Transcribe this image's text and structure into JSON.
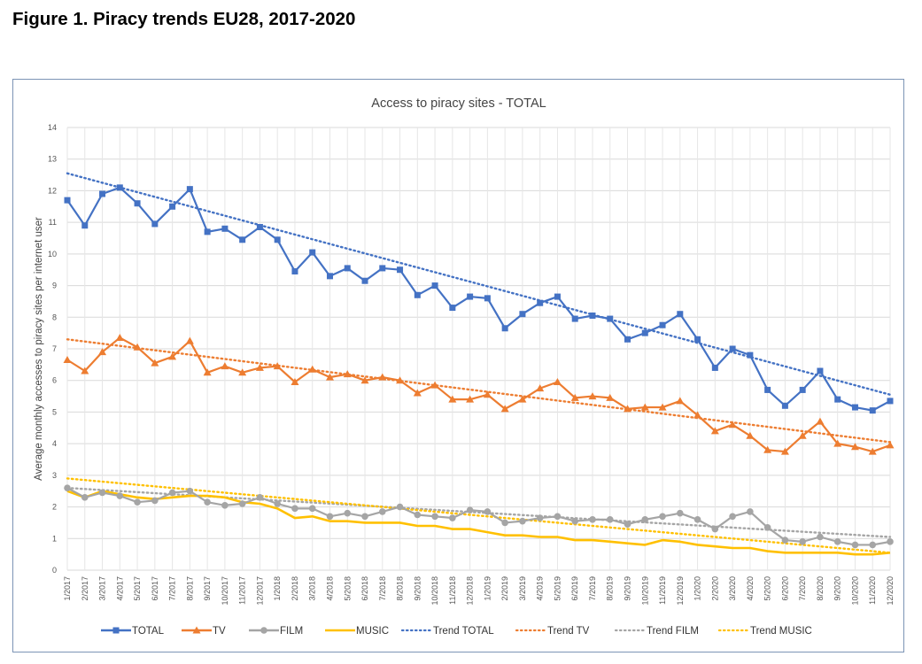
{
  "figure_title": "Figure 1. Piracy trends EU28, 2017-2020",
  "chart_data": {
    "type": "line",
    "title": "Access to piracy sites - TOTAL",
    "xlabel": "",
    "ylabel": "Average monthly accesses to piracy sites per internet user",
    "ylim": [
      0,
      14
    ],
    "yticks": [
      0,
      1,
      2,
      3,
      4,
      5,
      6,
      7,
      8,
      9,
      10,
      11,
      12,
      13,
      14
    ],
    "grid": true,
    "legend_position": "bottom",
    "categories": [
      "1/2017",
      "2/2017",
      "3/2017",
      "4/2017",
      "5/2017",
      "6/2017",
      "7/2017",
      "8/2017",
      "9/2017",
      "10/2017",
      "11/2017",
      "12/2017",
      "1/2018",
      "2/2018",
      "3/2018",
      "4/2018",
      "5/2018",
      "6/2018",
      "7/2018",
      "8/2018",
      "9/2018",
      "10/2018",
      "11/2018",
      "12/2018",
      "1/2019",
      "2/2019",
      "3/2019",
      "4/2019",
      "5/2019",
      "6/2019",
      "7/2019",
      "8/2019",
      "9/2019",
      "10/2019",
      "11/2019",
      "12/2019",
      "1/2020",
      "2/2020",
      "3/2020",
      "4/2020",
      "5/2020",
      "6/2020",
      "7/2020",
      "8/2020",
      "9/2020",
      "10/2020",
      "11/2020",
      "12/2020"
    ],
    "series": [
      {
        "name": "TOTAL",
        "color": "#4472c4",
        "marker": "square",
        "values": [
          11.7,
          10.9,
          11.9,
          12.1,
          11.6,
          10.95,
          11.5,
          12.05,
          10.7,
          10.8,
          10.45,
          10.85,
          10.45,
          9.45,
          10.05,
          9.3,
          9.55,
          9.15,
          9.55,
          9.5,
          8.7,
          9.0,
          8.3,
          8.65,
          8.6,
          7.65,
          8.1,
          8.45,
          8.65,
          7.95,
          8.05,
          7.95,
          7.3,
          7.5,
          7.75,
          8.1,
          7.3,
          6.4,
          7.0,
          6.8,
          5.7,
          5.2,
          5.7,
          6.3,
          5.4,
          5.15,
          5.05,
          5.35
        ]
      },
      {
        "name": "TV",
        "color": "#ed7d31",
        "marker": "triangle",
        "values": [
          6.65,
          6.3,
          6.9,
          7.35,
          7.05,
          6.55,
          6.75,
          7.25,
          6.25,
          6.45,
          6.25,
          6.4,
          6.45,
          5.95,
          6.35,
          6.1,
          6.2,
          6.0,
          6.1,
          6.0,
          5.6,
          5.85,
          5.4,
          5.4,
          5.55,
          5.1,
          5.4,
          5.75,
          5.95,
          5.45,
          5.5,
          5.45,
          5.1,
          5.15,
          5.15,
          5.35,
          4.9,
          4.4,
          4.6,
          4.25,
          3.8,
          3.75,
          4.25,
          4.7,
          4.0,
          3.9,
          3.75,
          3.95
        ]
      },
      {
        "name": "FILM",
        "color": "#a5a5a5",
        "marker": "circle",
        "values": [
          2.6,
          2.3,
          2.45,
          2.35,
          2.15,
          2.2,
          2.45,
          2.5,
          2.15,
          2.05,
          2.1,
          2.3,
          2.1,
          1.95,
          1.95,
          1.7,
          1.8,
          1.7,
          1.85,
          2.0,
          1.75,
          1.7,
          1.65,
          1.9,
          1.85,
          1.5,
          1.55,
          1.65,
          1.7,
          1.55,
          1.6,
          1.6,
          1.45,
          1.6,
          1.7,
          1.8,
          1.6,
          1.3,
          1.7,
          1.85,
          1.35,
          0.95,
          0.9,
          1.05,
          0.9,
          0.8,
          0.8,
          0.9
        ]
      },
      {
        "name": "MUSIC",
        "color": "#ffc000",
        "marker": "none",
        "values": [
          2.5,
          2.3,
          2.5,
          2.4,
          2.3,
          2.25,
          2.3,
          2.35,
          2.35,
          2.3,
          2.15,
          2.1,
          1.95,
          1.65,
          1.7,
          1.55,
          1.55,
          1.5,
          1.5,
          1.5,
          1.4,
          1.4,
          1.3,
          1.3,
          1.2,
          1.1,
          1.1,
          1.05,
          1.05,
          0.95,
          0.95,
          0.9,
          0.85,
          0.8,
          0.95,
          0.9,
          0.8,
          0.75,
          0.7,
          0.7,
          0.6,
          0.55,
          0.55,
          0.55,
          0.55,
          0.5,
          0.5,
          0.55
        ]
      },
      {
        "name": "Trend TOTAL",
        "color": "#4472c4",
        "dotted": true,
        "start": 12.55,
        "end": 5.55
      },
      {
        "name": "Trend TV",
        "color": "#ed7d31",
        "dotted": true,
        "start": 7.3,
        "end": 4.05
      },
      {
        "name": "Trend FILM",
        "color": "#a5a5a5",
        "dotted": true,
        "start": 2.6,
        "end": 1.05
      },
      {
        "name": "Trend MUSIC",
        "color": "#ffc000",
        "dotted": true,
        "start": 2.9,
        "end": 0.55
      }
    ]
  }
}
